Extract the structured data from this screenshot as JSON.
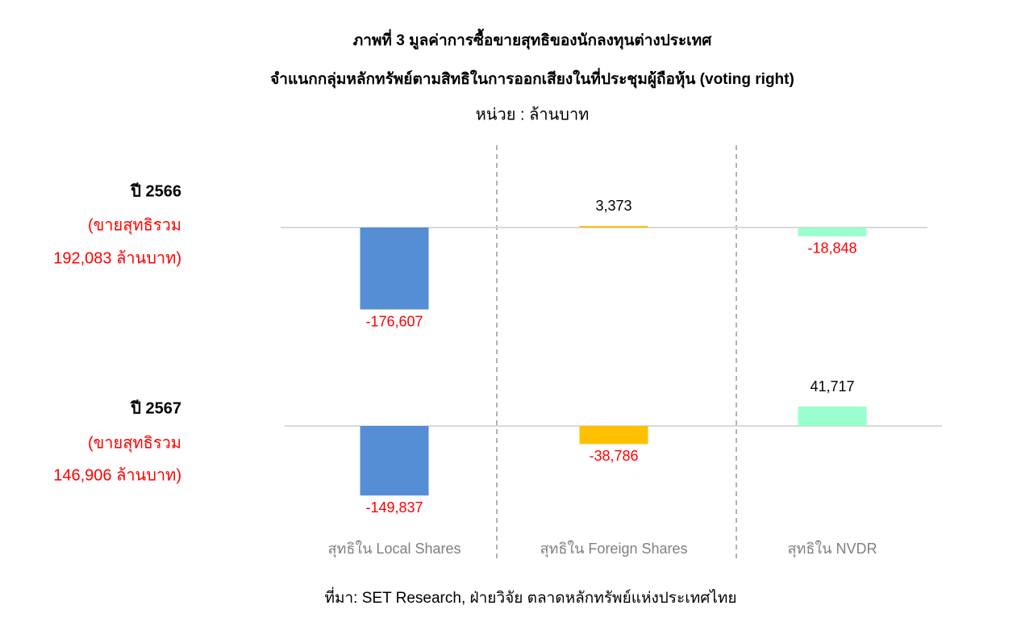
{
  "chart_data": {
    "type": "bar",
    "title": "ภาพที่ 3 มูลค่าการซื้อขายสุทธิของนักลงทุนต่างประเทศ",
    "subtitle": "จำแนกกลุ่มหลักทรัพย์ตามสิทธิในการออกเสียงในที่ประชุมผู้ถือหุ้น (voting right)",
    "unit_label": "หน่วย : ล้านบาท",
    "categories": [
      "สุทธิใน Local Shares",
      "สุทธิใน Foreign Shares",
      "สุทธิใน NVDR"
    ],
    "colors": [
      "#558ed5",
      "#ffc000",
      "#99ffcc"
    ],
    "series": [
      {
        "name": "ปี 2566",
        "note": [
          "(ขายสุทธิรวม",
          "192,083 ล้านบาท)"
        ],
        "values": [
          -176607,
          3373,
          -18848
        ],
        "value_labels": [
          "-176,607",
          "3,373",
          "-18,848"
        ]
      },
      {
        "name": "ปี 2567",
        "note": [
          "(ขายสุทธิรวม",
          "146,906 ล้านบาท)"
        ],
        "values": [
          -149837,
          -38786,
          41717
        ],
        "value_labels": [
          "-149,837",
          "-38,786",
          "41,717"
        ]
      }
    ],
    "source": "ที่มา: SET Research, ฝ่ายวิจัย ตลาดหลักทรัพย์แห่งประเทศไทย"
  }
}
